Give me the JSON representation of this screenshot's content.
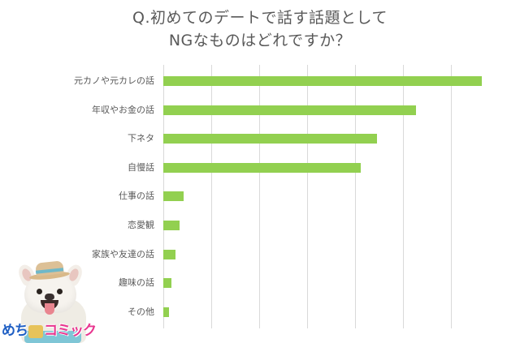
{
  "chart_data": {
    "type": "bar",
    "orientation": "horizontal",
    "title": "Q.初めてのデートで話す話題として NGなものはどれですか？",
    "title_lines": [
      "Q.初めてのデートで話す話題として",
      "NGなものはどれですか？"
    ],
    "categories": [
      "元カノや元カレの話",
      "年収やお金の話",
      "下ネタ",
      "自慢話",
      "仕事の話",
      "恋愛観",
      "家族や友達の話",
      "趣味の話",
      "その他"
    ],
    "values": [
      66.4,
      52.7,
      44.6,
      41.2,
      4.2,
      3.4,
      2.5,
      1.7,
      1.2
    ],
    "value_unit": "% (estimated; axis tick labels not shown)",
    "xlabel": "",
    "ylabel": "",
    "xlim": [
      0,
      60
    ],
    "grid": true,
    "grid_lines": 7,
    "tick_labels_visible": false,
    "legend": null,
    "bar_color": "#92d050",
    "grid_color": "#d9d9d9"
  },
  "branding": {
    "logo_text_blue": "めち",
    "logo_text_small": "ゃ",
    "logo_text_pink": "コミック",
    "logo_full": "めちゃコミック",
    "mascot": "french-bulldog-with-straw-hat"
  }
}
